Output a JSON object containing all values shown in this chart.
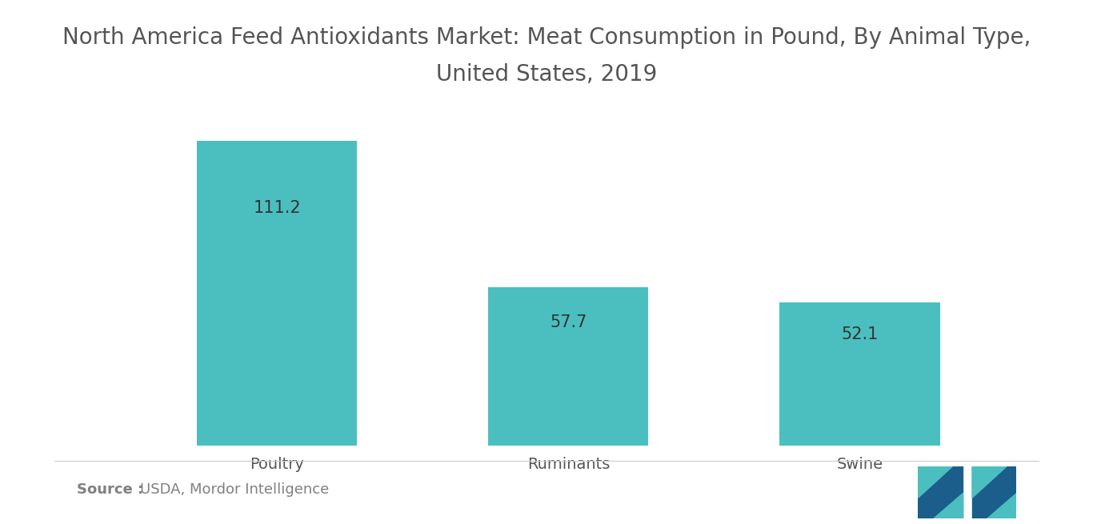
{
  "title_line1": "North America Feed Antioxidants Market: Meat Consumption in Pound, By Animal Type,",
  "title_line2": "United States, 2019",
  "categories": [
    "Poultry",
    "Ruminants",
    "Swine"
  ],
  "values": [
    111.2,
    57.7,
    52.1
  ],
  "bar_color": "#4BBFBF",
  "background_color": "#ffffff",
  "title_fontsize": 20,
  "value_fontsize": 15,
  "tick_fontsize": 14,
  "title_color": "#555555",
  "value_color": "#333333",
  "tick_color": "#555555",
  "source_bold": "Source :",
  "source_normal": "USDA, Mordor Intelligence",
  "source_fontsize": 13,
  "source_color": "#808080",
  "ylim": [
    0,
    130
  ],
  "bar_width": 0.55
}
